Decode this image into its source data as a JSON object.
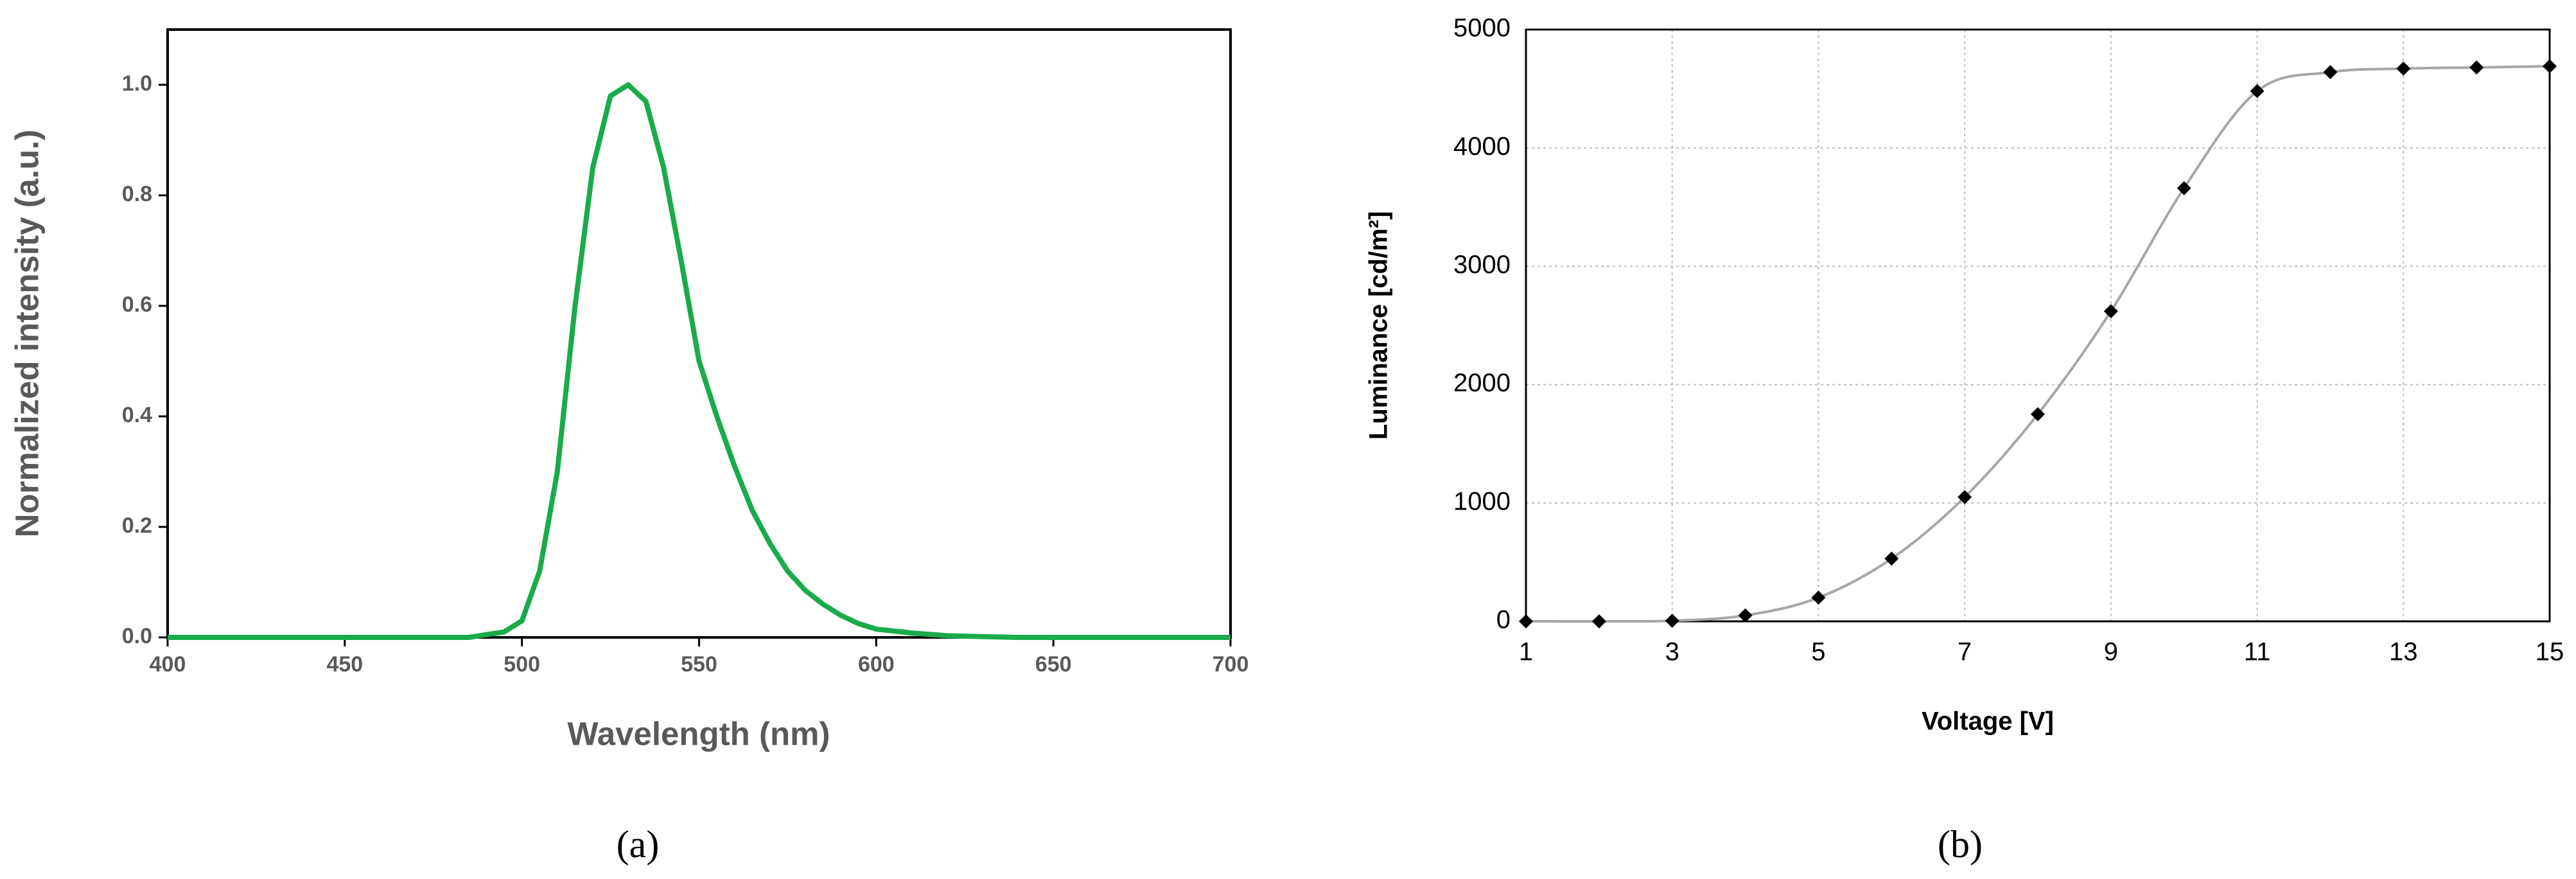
{
  "chart_data": [
    {
      "type": "line",
      "caption": "(a)",
      "xlabel": "Wavelength (nm)",
      "ylabel": "Normalized intensity (a.u.)",
      "color": "#1aab4a",
      "x": [
        400,
        420,
        440,
        460,
        480,
        485,
        490,
        495,
        500,
        505,
        510,
        515,
        520,
        525,
        530,
        535,
        540,
        545,
        550,
        555,
        560,
        565,
        570,
        575,
        580,
        585,
        590,
        595,
        600,
        610,
        620,
        640,
        660,
        680,
        700
      ],
      "values": [
        0,
        0,
        0,
        0,
        0,
        0,
        0.005,
        0.01,
        0.03,
        0.12,
        0.3,
        0.6,
        0.85,
        0.98,
        1.0,
        0.97,
        0.85,
        0.68,
        0.5,
        0.4,
        0.31,
        0.23,
        0.17,
        0.12,
        0.085,
        0.06,
        0.04,
        0.025,
        0.015,
        0.008,
        0.003,
        0,
        0,
        0,
        0
      ],
      "xlim": [
        400,
        700
      ],
      "xticks": [
        400,
        450,
        500,
        550,
        600,
        650,
        700
      ],
      "ylim": [
        0,
        1.1
      ],
      "yticks": [
        {
          "value": 0,
          "label": "0.0"
        },
        0.2,
        0.4,
        0.6,
        0.8,
        {
          "value": 1,
          "label": "1.0"
        }
      ],
      "grid": false
    },
    {
      "type": "scatter",
      "caption": "(b)",
      "xlabel": "Voltage [V]",
      "ylabel": "Luminance [cd/m²]",
      "color": "#000000",
      "line_color": "#a6a6a6",
      "smooth": true,
      "x": [
        1,
        2,
        3,
        4,
        5,
        6,
        7,
        8,
        9,
        10,
        11,
        12,
        13,
        14,
        15
      ],
      "values": [
        0,
        0,
        5,
        50,
        200,
        530,
        1050,
        1750,
        2620,
        3660,
        4480,
        4640,
        4670,
        4680,
        4690
      ],
      "xlim": [
        1,
        15
      ],
      "xticks": [
        1,
        3,
        5,
        7,
        9,
        11,
        13,
        15
      ],
      "ylim": [
        0,
        5000
      ],
      "yticks": [
        0,
        1000,
        2000,
        3000,
        4000,
        5000
      ],
      "grid": true
    }
  ]
}
